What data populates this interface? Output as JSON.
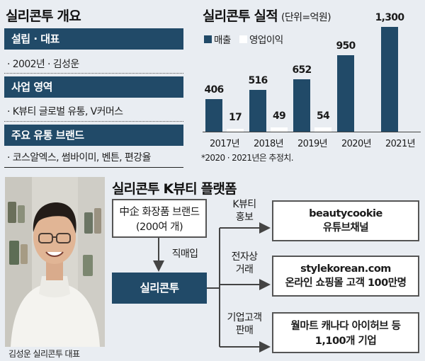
{
  "overview": {
    "title": "실리콘투 개요",
    "sections": [
      {
        "header": "설립 · 대표",
        "text": "· 2002년 · 김성운"
      },
      {
        "header": "사업 영역",
        "text": "· K뷰티 글로벌 유통, V커머스"
      },
      {
        "header": "주요 유통 브랜드",
        "text": "· 코스알엑스, 썸바이미, 벤튼, 편강율"
      }
    ]
  },
  "performance": {
    "title": "실리콘투 실적",
    "unit": "(단위=억원)",
    "legend_revenue": "매출",
    "legend_profit": "영업이익",
    "footnote": "*2020 · 2021년은 추정치.",
    "colors": {
      "revenue": "#214a68",
      "profit": "#ffffff"
    }
  },
  "chart_data": {
    "type": "bar",
    "categories": [
      "2017년",
      "2018년",
      "2019년",
      "2020년",
      "2021년"
    ],
    "series": [
      {
        "name": "매출",
        "values": [
          406,
          516,
          652,
          950,
          1300
        ],
        "labels": [
          "406",
          "516",
          "652",
          "950",
          "1,300"
        ]
      },
      {
        "name": "영업이익",
        "values": [
          17,
          49,
          54,
          null,
          null
        ],
        "labels": [
          "17",
          "49",
          "54",
          "",
          ""
        ]
      }
    ],
    "title": "실리콘투 실적",
    "ylim": [
      0,
      1300
    ],
    "grid": false,
    "legend": "top-left"
  },
  "platform": {
    "title": "실리콘투 K뷰티 플랫폼",
    "source_line1": "中企 화장품 브랜드",
    "source_line2": "(200여 개)",
    "arrow_label": "직매입",
    "core": "실리콘투",
    "channels": [
      {
        "label_line1": "K뷰티",
        "label_line2": "홍보",
        "box_line1": "beautycookie",
        "box_line2": "유튜브채널"
      },
      {
        "label_line1": "전자상",
        "label_line2": "거래",
        "box_line1": "stylekorean.com",
        "box_line2": "온라인 쇼핑몰 고객 100만명"
      },
      {
        "label_line1": "기업고객",
        "label_line2": "판매",
        "box_line1": "월마트 캐나다 아이허브 등",
        "box_line2": "1,100개 기업"
      }
    ]
  },
  "photo_caption": "김성운 실리콘투 대표"
}
